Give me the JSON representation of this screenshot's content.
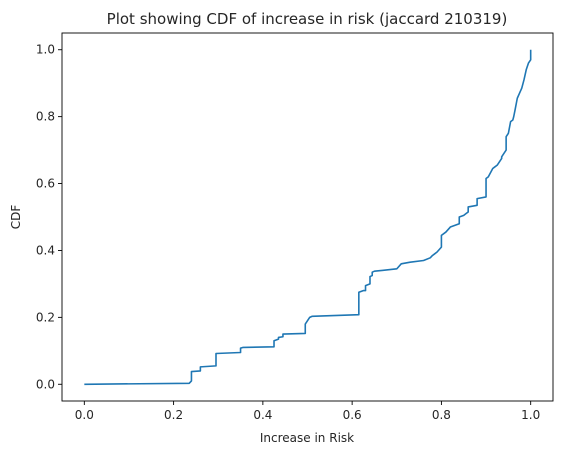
{
  "chart_data": {
    "type": "line",
    "title": "Plot showing CDF of increase in risk (jaccard 210319)",
    "xlabel": "Increase in Risk",
    "ylabel": "CDF",
    "xlim": [
      -0.05,
      1.05
    ],
    "ylim": [
      -0.05,
      1.05
    ],
    "xticks": [
      0.0,
      0.2,
      0.4,
      0.6,
      0.8,
      1.0
    ],
    "xtick_labels": [
      "0.0",
      "0.2",
      "0.4",
      "0.6",
      "0.8",
      "1.0"
    ],
    "yticks": [
      0.0,
      0.2,
      0.4,
      0.6,
      0.8,
      1.0
    ],
    "ytick_labels": [
      "0.0",
      "0.2",
      "0.4",
      "0.6",
      "0.8",
      "1.0"
    ],
    "grid": false,
    "line_color": "#1f77b4",
    "series": [
      {
        "x": [
          0.0,
          0.235,
          0.24,
          0.24,
          0.26,
          0.26,
          0.295,
          0.295,
          0.35,
          0.35,
          0.355,
          0.425,
          0.425,
          0.435,
          0.435,
          0.445,
          0.445,
          0.495,
          0.495,
          0.5,
          0.505,
          0.51,
          0.615,
          0.615,
          0.625,
          0.63,
          0.63,
          0.64,
          0.64,
          0.645,
          0.645,
          0.65,
          0.7,
          0.71,
          0.73,
          0.76,
          0.775,
          0.78,
          0.785,
          0.79,
          0.8,
          0.8,
          0.81,
          0.82,
          0.83,
          0.84,
          0.84,
          0.85,
          0.855,
          0.86,
          0.86,
          0.88,
          0.88,
          0.9,
          0.9,
          0.905,
          0.915,
          0.92,
          0.925,
          0.93,
          0.935,
          0.935,
          0.945,
          0.945,
          0.95,
          0.955,
          0.96,
          0.962,
          0.965,
          0.97,
          0.975,
          0.98,
          0.985,
          0.99,
          0.995,
          1.0,
          1.0
        ],
        "y": [
          0.0,
          0.003,
          0.01,
          0.038,
          0.04,
          0.052,
          0.055,
          0.092,
          0.095,
          0.108,
          0.11,
          0.112,
          0.13,
          0.135,
          0.14,
          0.142,
          0.15,
          0.152,
          0.18,
          0.19,
          0.2,
          0.203,
          0.208,
          0.275,
          0.28,
          0.28,
          0.295,
          0.3,
          0.322,
          0.325,
          0.335,
          0.338,
          0.345,
          0.36,
          0.365,
          0.37,
          0.378,
          0.385,
          0.39,
          0.395,
          0.41,
          0.445,
          0.455,
          0.47,
          0.475,
          0.48,
          0.5,
          0.505,
          0.51,
          0.515,
          0.53,
          0.535,
          0.555,
          0.56,
          0.615,
          0.62,
          0.645,
          0.65,
          0.655,
          0.665,
          0.675,
          0.68,
          0.7,
          0.74,
          0.75,
          0.785,
          0.79,
          0.8,
          0.82,
          0.855,
          0.87,
          0.885,
          0.91,
          0.94,
          0.96,
          0.97,
          1.0
        ]
      }
    ]
  }
}
